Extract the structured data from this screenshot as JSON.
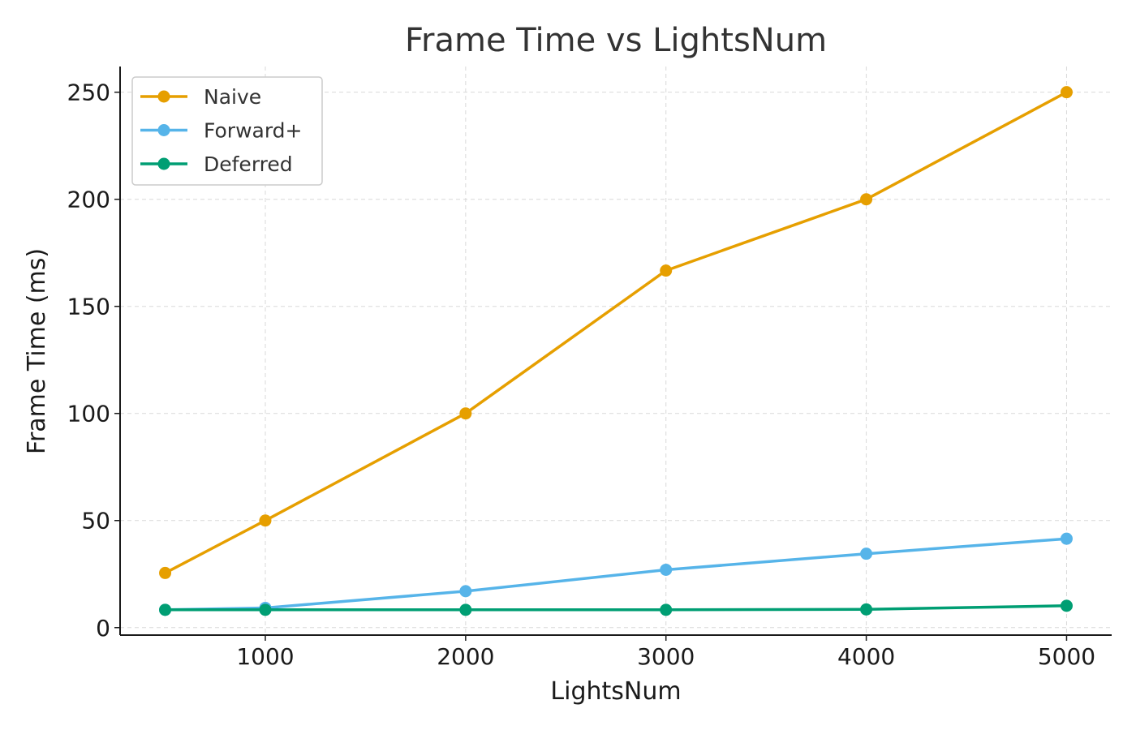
{
  "chart_data": {
    "type": "line",
    "title": "Frame Time vs LightsNum",
    "xlabel": "LightsNum",
    "ylabel": "Frame Time (ms)",
    "x": [
      500,
      1000,
      2000,
      3000,
      4000,
      5000
    ],
    "xlim": [
      275,
      5225
    ],
    "ylim": [
      -3.5,
      262
    ],
    "xticks": [
      1000,
      2000,
      3000,
      4000,
      5000
    ],
    "yticks": [
      0,
      50,
      100,
      150,
      200,
      250
    ],
    "grid": true,
    "legend_position": "top-left",
    "series": [
      {
        "name": "Naive",
        "color": "#E69F00",
        "values": [
          25.5,
          50,
          100,
          166.7,
          200,
          250
        ]
      },
      {
        "name": "Forward+",
        "color": "#56B4E9",
        "values": [
          8.3,
          9.2,
          17,
          27,
          34.5,
          41.5
        ]
      },
      {
        "name": "Deferred",
        "color": "#009E73",
        "values": [
          8.3,
          8.3,
          8.3,
          8.3,
          8.5,
          10.2
        ]
      }
    ]
  }
}
